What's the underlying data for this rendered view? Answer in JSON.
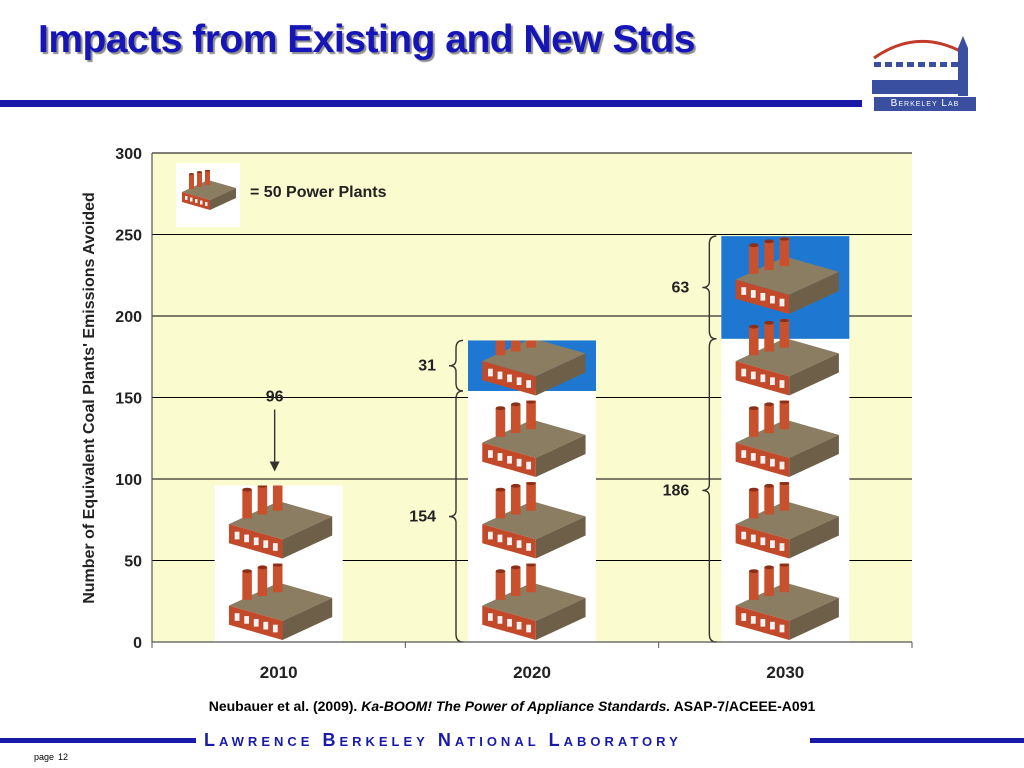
{
  "slide": {
    "title": "Impacts from Existing and New Stds",
    "logo_text": "Berkeley Lab",
    "citation": {
      "authors": "Neubauer et al. (2009).",
      "work": "Ka-BOOM! The Power of Appliance Standards.",
      "report": "ASAP-7/ACEEE-A091"
    },
    "footer": "Lawrence Berkeley National Laboratory",
    "page_label": "page",
    "page_number": "12"
  },
  "colors": {
    "title": "#1515b8",
    "rule": "#1a1aa8",
    "plot_bg": "#fbfbd0",
    "brick": "#c24a2a",
    "roof": "#8a7d62",
    "new_stds_bg": "#1e78d2"
  },
  "chart_data": {
    "type": "bar",
    "title": "",
    "ylabel": "Number of Equivalent Coal Plants' Emissions Avoided",
    "xlabel": "",
    "categories": [
      "2010",
      "2020",
      "2030"
    ],
    "ylim": [
      0,
      300
    ],
    "yticks": [
      0,
      50,
      100,
      150,
      200,
      250,
      300
    ],
    "grid": true,
    "legend": {
      "placement": "top-left",
      "icon": "power-plant",
      "text": "= 50 Power Plants"
    },
    "series": [
      {
        "values": [
          96,
          154,
          186
        ]
      },
      {
        "values": [
          0,
          31,
          63
        ]
      }
    ],
    "annotations": [
      {
        "category": "2010",
        "text": "96",
        "value": 96,
        "style": "arrow"
      },
      {
        "category": "2020",
        "text": "154",
        "from": 0,
        "to": 154,
        "style": "brace"
      },
      {
        "category": "2020",
        "text": "31",
        "from": 154,
        "to": 185,
        "style": "brace"
      },
      {
        "category": "2030",
        "text": "186",
        "from": 0,
        "to": 186,
        "style": "brace"
      },
      {
        "category": "2030",
        "text": "63",
        "from": 186,
        "to": 249,
        "style": "brace"
      }
    ]
  }
}
